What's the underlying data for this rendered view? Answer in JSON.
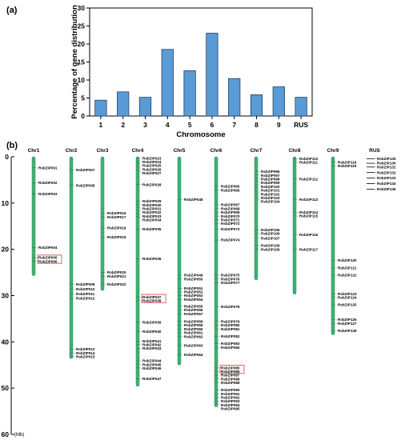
{
  "panel_a_label": "(a)",
  "panel_b_label": "(b)",
  "chart_data": [
    {
      "type": "bar",
      "categories": [
        "1",
        "2",
        "3",
        "4",
        "5",
        "6",
        "7",
        "8",
        "9",
        "RUS"
      ],
      "values": [
        4.4,
        6.7,
        5.2,
        18.5,
        12.6,
        23.0,
        10.4,
        5.9,
        8.1,
        5.2
      ],
      "xlabel": "Chromosome",
      "ylabel": "Percentage of gene distribution",
      "ylim": [
        0,
        30
      ],
      "yticks": [
        0,
        5,
        10,
        15,
        20,
        25,
        30
      ],
      "bar_color": "#5b9bd5",
      "grid": false
    },
    {
      "type": "chromosome_map",
      "unit_label": "(Mb)",
      "ylim": [
        0,
        60
      ],
      "yticks": [
        0,
        10,
        20,
        30,
        40,
        50,
        60
      ],
      "chromosome_color": "#3cb371",
      "highlight_color": "#e05050",
      "chromosomes": [
        {
          "name": "Chr1",
          "length": 25.7,
          "genes": [
            {
              "id": "RsbZIP001",
              "pos": 2.4
            },
            {
              "id": "RsbZIP002",
              "pos": 5.6
            },
            {
              "id": "RsbZIP003",
              "pos": 8.0
            },
            {
              "id": "RsbZIP004",
              "pos": 19.6
            },
            {
              "id": "RsbZIP005",
              "pos": 21.8,
              "highlight": true
            },
            {
              "id": "RsbZIP006",
              "pos": 22.6,
              "highlight": true
            }
          ]
        },
        {
          "name": "Chr2",
          "length": 43.6,
          "genes": [
            {
              "id": "RsbZIP007",
              "pos": 2.8
            },
            {
              "id": "RsbZIP008",
              "pos": 6.2
            },
            {
              "id": "RsbZIP009",
              "pos": 27.6
            },
            {
              "id": "RsbZIP010",
              "pos": 28.6
            },
            {
              "id": "RsbZIP011",
              "pos": 29.6
            },
            {
              "id": "RsbZIP012",
              "pos": 30.6
            },
            {
              "id": "RsbZIP013",
              "pos": 41.6
            },
            {
              "id": "RsbZIP014",
              "pos": 42.4
            },
            {
              "id": "RsbZIP015",
              "pos": 43.2
            }
          ]
        },
        {
          "name": "Chr3",
          "length": 28.9,
          "genes": [
            {
              "id": "RsbZIP016",
              "pos": 12.2
            },
            {
              "id": "RsbZIP017",
              "pos": 13.0
            },
            {
              "id": "RsbZIP018",
              "pos": 15.4
            },
            {
              "id": "RsbZIP019",
              "pos": 17.4
            },
            {
              "id": "RsbZIP020",
              "pos": 25.0
            },
            {
              "id": "RsbZIP021",
              "pos": 25.8
            },
            {
              "id": "RsbZIP022",
              "pos": 27.6
            }
          ]
        },
        {
          "name": "Chr4",
          "length": 49.6,
          "genes": [
            {
              "id": "RsbZIP023",
              "pos": 0.3
            },
            {
              "id": "RsbZIP024",
              "pos": 0.9
            },
            {
              "id": "RsbZIP025",
              "pos": 1.5
            },
            {
              "id": "RsbZIP026",
              "pos": 2.2
            },
            {
              "id": "RsbZIP027",
              "pos": 2.9
            },
            {
              "id": "RsbZIP028",
              "pos": 6.0
            },
            {
              "id": "RsbZIP029",
              "pos": 9.6
            },
            {
              "id": "RsbZIP030",
              "pos": 10.3
            },
            {
              "id": "RsbZIP031",
              "pos": 10.9
            },
            {
              "id": "RsbZIP032",
              "pos": 11.6
            },
            {
              "id": "RsbZIP033",
              "pos": 12.2
            },
            {
              "id": "RsbZIP034",
              "pos": 12.9
            },
            {
              "id": "RsbZIP035",
              "pos": 15.6
            },
            {
              "id": "RsbZIP036",
              "pos": 22.0
            },
            {
              "id": "RsbZIP037",
              "pos": 30.3,
              "highlight": true
            },
            {
              "id": "RsbZIP038",
              "pos": 31.1,
              "highlight": true
            },
            {
              "id": "RsbZIP039",
              "pos": 35.8
            },
            {
              "id": "RsbZIP040",
              "pos": 37.8
            },
            {
              "id": "RsbZIP041",
              "pos": 39.8
            },
            {
              "id": "RsbZIP042",
              "pos": 40.6
            },
            {
              "id": "RsbZIP043",
              "pos": 41.4
            },
            {
              "id": "RsbZIP044",
              "pos": 44.1
            },
            {
              "id": "RsbZIP045",
              "pos": 44.8
            },
            {
              "id": "RsbZIP046",
              "pos": 45.6
            },
            {
              "id": "RsbZIP047",
              "pos": 48.0
            }
          ]
        },
        {
          "name": "Chr5",
          "length": 45.0,
          "genes": [
            {
              "id": "RsbZIP048",
              "pos": 9.2
            },
            {
              "id": "RsbZIP049",
              "pos": 25.6
            },
            {
              "id": "RsbZIP050",
              "pos": 26.4
            },
            {
              "id": "RsbZIP051",
              "pos": 28.4
            },
            {
              "id": "RsbZIP052",
              "pos": 29.2
            },
            {
              "id": "RsbZIP053",
              "pos": 30.0
            },
            {
              "id": "RsbZIP054",
              "pos": 30.8
            },
            {
              "id": "RsbZIP055",
              "pos": 32.3
            },
            {
              "id": "RsbZIP056",
              "pos": 33.1
            },
            {
              "id": "RsbZIP057",
              "pos": 33.9
            },
            {
              "id": "RsbZIP058",
              "pos": 35.6
            },
            {
              "id": "RsbZIP059",
              "pos": 36.4
            },
            {
              "id": "RsbZIP060",
              "pos": 37.2
            },
            {
              "id": "RsbZIP061",
              "pos": 38.0
            },
            {
              "id": "RsbZIP062",
              "pos": 38.8
            },
            {
              "id": "RsbZIP063",
              "pos": 40.8
            },
            {
              "id": "RsbZIP064",
              "pos": 42.8
            }
          ]
        },
        {
          "name": "Chr6",
          "length": 54.0,
          "genes": [
            {
              "id": "RsbZIP065",
              "pos": 6.4
            },
            {
              "id": "RsbZIP066",
              "pos": 7.2
            },
            {
              "id": "RsbZIP067",
              "pos": 10.4
            },
            {
              "id": "RsbZIP068",
              "pos": 11.2
            },
            {
              "id": "RsbZIP069",
              "pos": 12.0
            },
            {
              "id": "RsbZIP070",
              "pos": 12.8
            },
            {
              "id": "RsbZIP071",
              "pos": 13.6
            },
            {
              "id": "RsbZIP072",
              "pos": 14.4
            },
            {
              "id": "RsbZIP073",
              "pos": 15.6
            },
            {
              "id": "RsbZIP074",
              "pos": 18.0
            },
            {
              "id": "RsbZIP075",
              "pos": 25.6
            },
            {
              "id": "RsbZIP076",
              "pos": 26.4
            },
            {
              "id": "RsbZIP077",
              "pos": 27.2
            },
            {
              "id": "RsbZIP078",
              "pos": 32.4
            },
            {
              "id": "RsbZIP079",
              "pos": 35.6
            },
            {
              "id": "RsbZIP080",
              "pos": 36.4
            },
            {
              "id": "RsbZIP081",
              "pos": 37.2
            },
            {
              "id": "RsbZIP082",
              "pos": 38.8
            },
            {
              "id": "RsbZIP083",
              "pos": 40.4
            },
            {
              "id": "RsbZIP084",
              "pos": 41.2
            },
            {
              "id": "RsbZIP085",
              "pos": 45.6,
              "highlight": true
            },
            {
              "id": "RsbZIP086",
              "pos": 46.4,
              "highlight": true
            },
            {
              "id": "RsbZIP087",
              "pos": 47.2
            },
            {
              "id": "RsbZIP088",
              "pos": 48.0
            },
            {
              "id": "RsbZIP089",
              "pos": 48.8
            },
            {
              "id": "RsbZIP090",
              "pos": 50.4
            },
            {
              "id": "RsbZIP091",
              "pos": 51.2
            },
            {
              "id": "RsbZIP092",
              "pos": 52.0
            },
            {
              "id": "RsbZIP093",
              "pos": 52.8
            },
            {
              "id": "RsbZIP094",
              "pos": 53.4
            },
            {
              "id": "RsbZIP095",
              "pos": 54.0
            }
          ]
        },
        {
          "name": "Chr7",
          "length": 26.6,
          "genes": [
            {
              "id": "RsbZIP096",
              "pos": 3.2
            },
            {
              "id": "RsbZIP097",
              "pos": 3.9
            },
            {
              "id": "RsbZIP098",
              "pos": 4.6
            },
            {
              "id": "RsbZIP099",
              "pos": 5.3
            },
            {
              "id": "RsbZIP100",
              "pos": 6.0
            },
            {
              "id": "RsbZIP101",
              "pos": 6.7
            },
            {
              "id": "RsbZIP102",
              "pos": 7.4
            },
            {
              "id": "RsbZIP103",
              "pos": 8.1
            },
            {
              "id": "RsbZIP104",
              "pos": 8.8
            },
            {
              "id": "RsbZIP105",
              "pos": 15.8
            },
            {
              "id": "RsbZIP106",
              "pos": 16.6
            },
            {
              "id": "RsbZIP107",
              "pos": 17.6
            },
            {
              "id": "RsbZIP108",
              "pos": 19.2
            },
            {
              "id": "RsbZIP109",
              "pos": 20.0
            }
          ]
        },
        {
          "name": "Chr8",
          "length": 29.7,
          "genes": [
            {
              "id": "RsbZIP110",
              "pos": 0.4
            },
            {
              "id": "RsbZIP111",
              "pos": 1.2
            },
            {
              "id": "RsbZIP112",
              "pos": 4.8
            },
            {
              "id": "RsbZIP113",
              "pos": 9.2
            },
            {
              "id": "RsbZIP114",
              "pos": 12.0
            },
            {
              "id": "RsbZIP115",
              "pos": 12.8
            },
            {
              "id": "RsbZIP116",
              "pos": 16.8
            },
            {
              "id": "RsbZIP117",
              "pos": 20.0
            }
          ]
        },
        {
          "name": "Chr9",
          "length": 38.5,
          "genes": [
            {
              "id": "RsbZIP118",
              "pos": 1.2
            },
            {
              "id": "RsbZIP119",
              "pos": 2.0
            },
            {
              "id": "RsbZIP120",
              "pos": 22.4
            },
            {
              "id": "RsbZIP121",
              "pos": 24.0
            },
            {
              "id": "RsbZIP122",
              "pos": 25.6
            },
            {
              "id": "RsbZIP123",
              "pos": 29.6
            },
            {
              "id": "RsbZIP124",
              "pos": 30.4
            },
            {
              "id": "RsbZIP125",
              "pos": 32.0
            },
            {
              "id": "RsbZIP126",
              "pos": 35.2
            },
            {
              "id": "RsbZIP127",
              "pos": 36.0
            },
            {
              "id": "RsbZIP128",
              "pos": 37.6
            }
          ]
        },
        {
          "name": "RUS",
          "length": null,
          "genes": [
            {
              "id": "RsbZIP129",
              "pos": 0.4
            },
            {
              "id": "RsbZIP130",
              "pos": 1.4
            },
            {
              "id": "RsbZIP131",
              "pos": 2.2
            },
            {
              "id": "RsbZIP132",
              "pos": 3.4
            },
            {
              "id": "RsbZIP133",
              "pos": 4.6
            },
            {
              "id": "RsbZIP134",
              "pos": 5.8
            },
            {
              "id": "RsbZIP135",
              "pos": 7.0
            }
          ]
        }
      ]
    }
  ]
}
